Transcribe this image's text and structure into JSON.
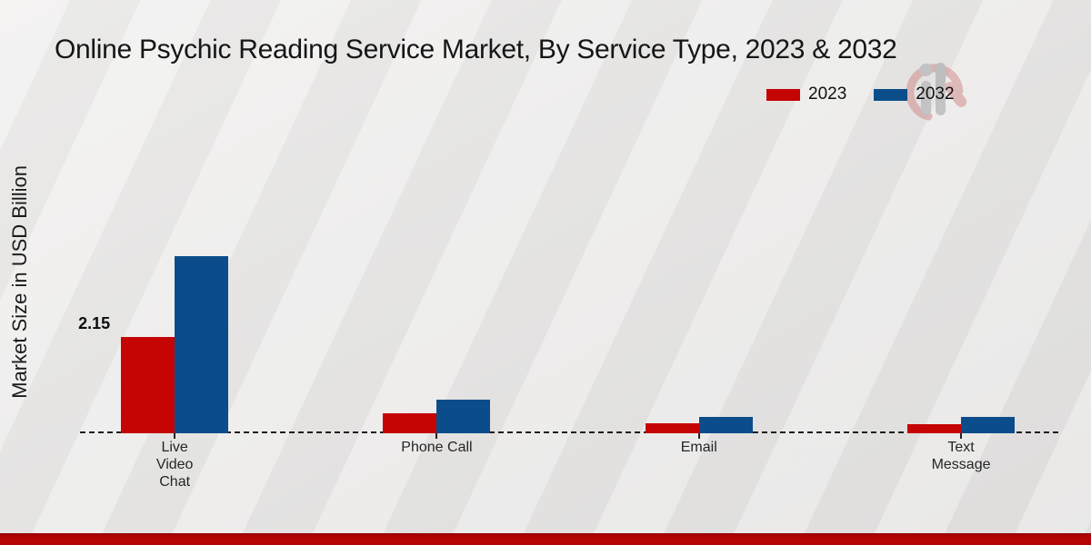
{
  "chart_data": {
    "type": "bar",
    "title": "Online Psychic Reading Service Market, By Service Type, 2023 & 2032",
    "ylabel": "Market Size in USD Billion",
    "xlabel": "",
    "categories": [
      "Live\nVideo\nChat",
      "Phone Call",
      "Email",
      "Text\nMessage"
    ],
    "series": [
      {
        "name": "2023",
        "color": "#c50404",
        "values": [
          2.15,
          0.44,
          0.22,
          0.21
        ]
      },
      {
        "name": "2032",
        "color": "#0b4d8a",
        "values": [
          3.95,
          0.75,
          0.36,
          0.37
        ]
      }
    ],
    "annotations": [
      {
        "series_index": 0,
        "category_index": 0,
        "text": "2.15"
      }
    ],
    "ylim": [
      0,
      4.3
    ],
    "grid": false,
    "legend_position": "top-right",
    "baseline_style": "dashed"
  },
  "colors": {
    "accent_red": "#c50404",
    "accent_blue": "#0b4d8a",
    "footer_band": "#b60303",
    "background": "#e9e8e7"
  }
}
